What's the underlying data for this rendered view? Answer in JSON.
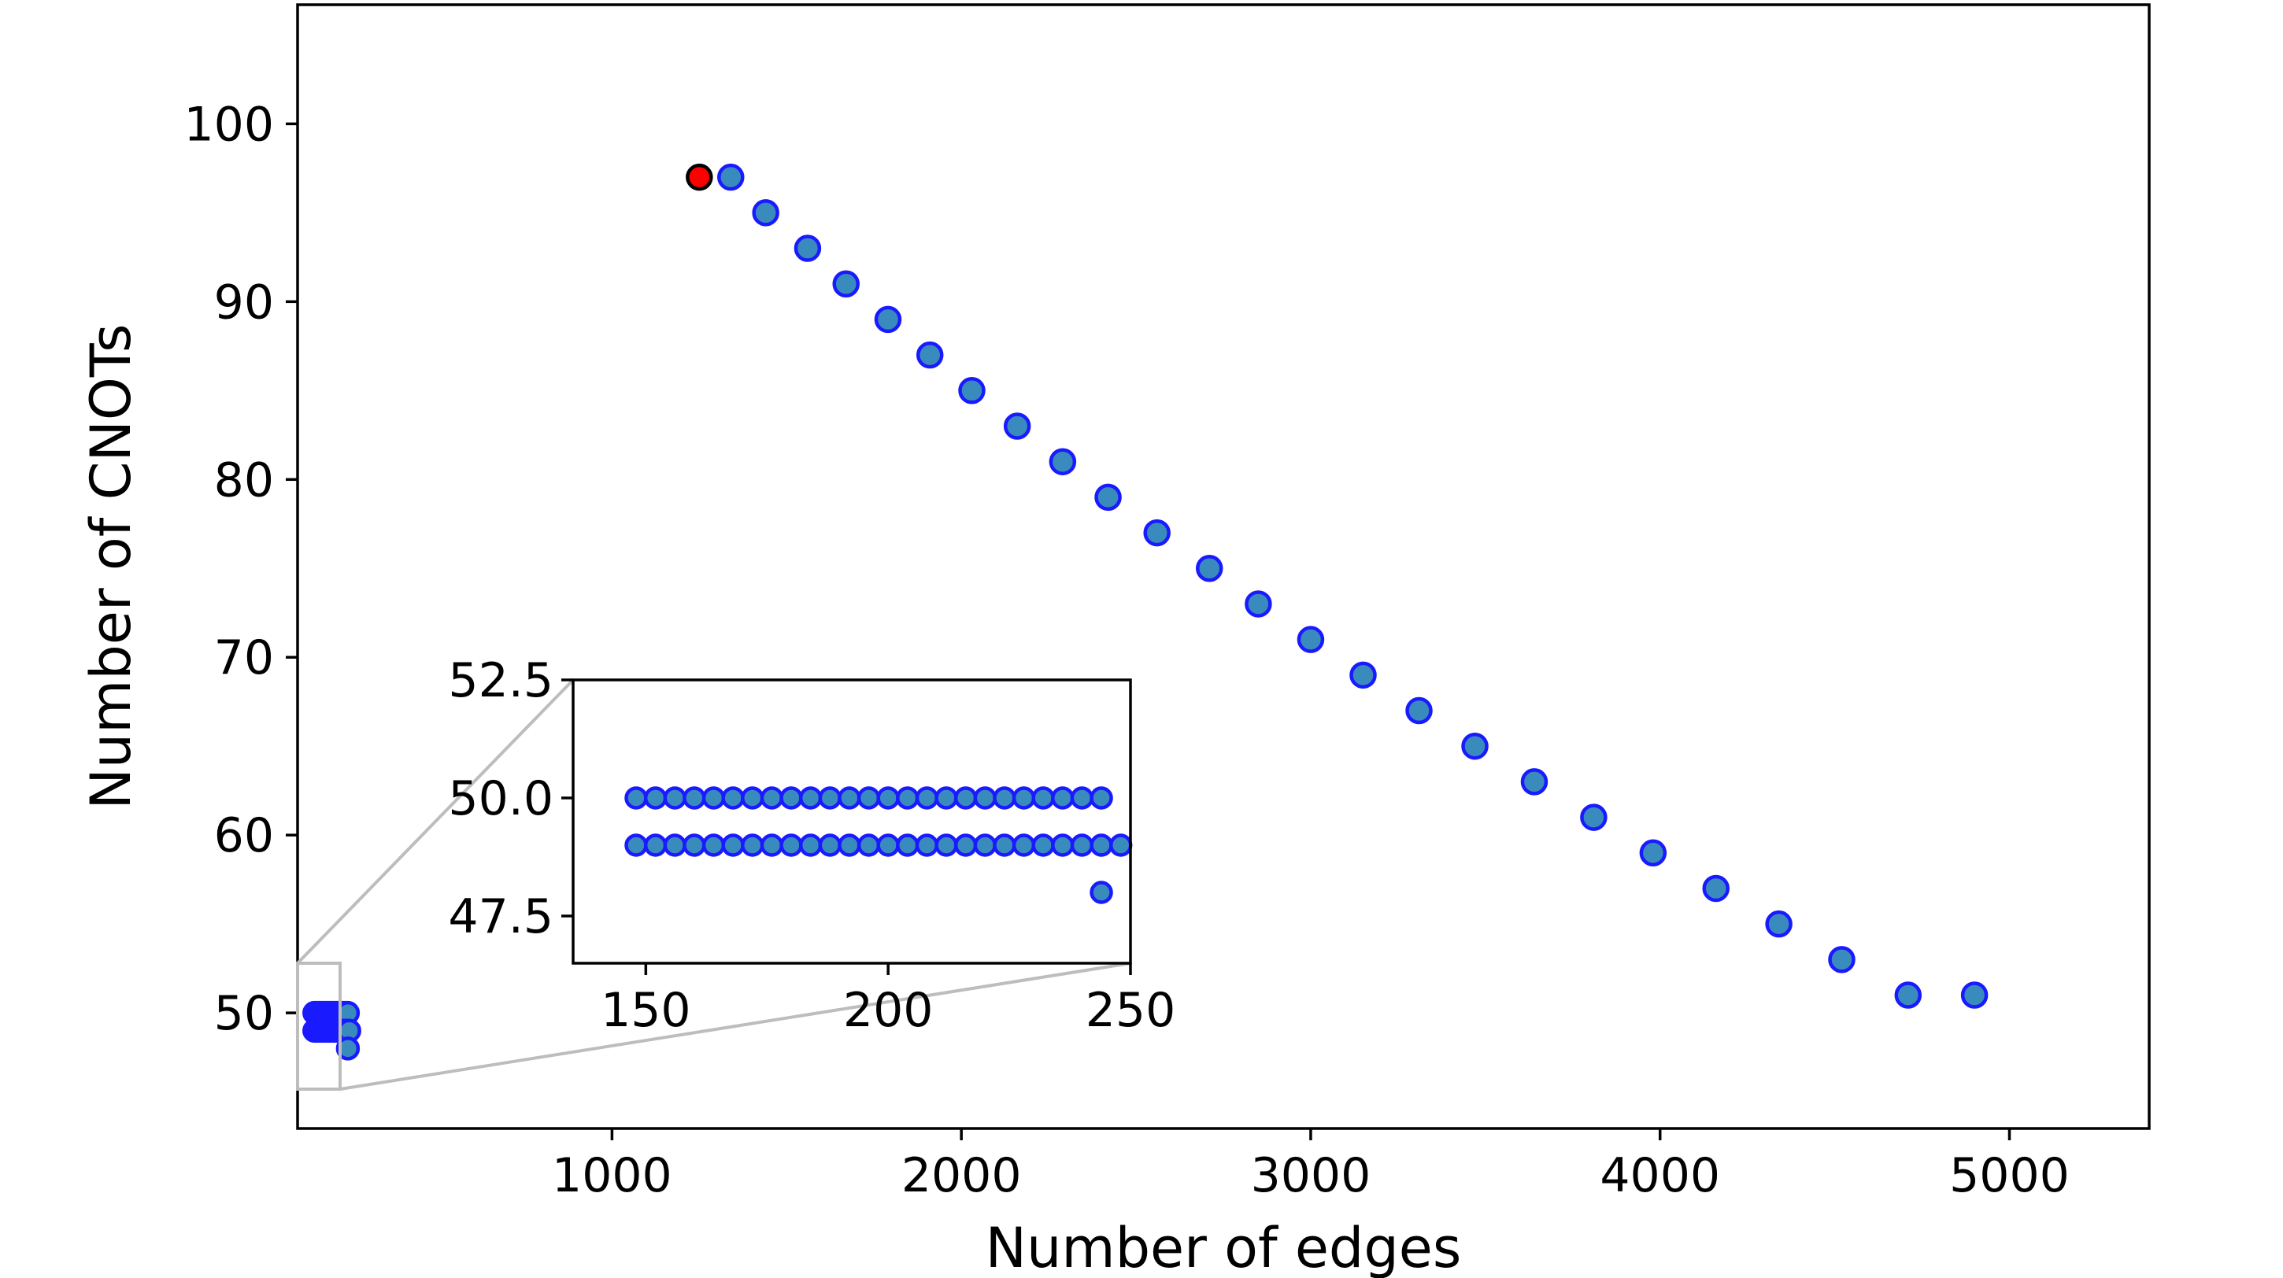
{
  "chart_data": [
    {
      "type": "scatter",
      "xlabel": "Number of edges",
      "ylabel": "Number of CNOTs",
      "xlim": [
        100,
        5400
      ],
      "ylim": [
        43.5,
        106.7
      ],
      "xticks": [
        1000,
        2000,
        3000,
        4000,
        5000
      ],
      "yticks": [
        50,
        60,
        70,
        80,
        90,
        100
      ],
      "grid": false,
      "series": [
        {
          "marker_color": "#3a8bbd",
          "edge_color": "#1a1aff",
          "x": [
            1340,
            1440,
            1560,
            1670,
            1790,
            1910,
            2030,
            2160,
            2290,
            2420,
            2560,
            2710,
            2850,
            3000,
            3150,
            3310,
            3470,
            3640,
            3810,
            3980,
            4160,
            4340,
            4520,
            4710,
            4900
          ],
          "y": [
            97,
            95,
            93,
            91,
            89,
            87,
            85,
            83,
            81,
            79,
            77,
            75,
            73,
            71,
            69,
            67,
            65,
            63,
            61,
            59,
            57,
            55,
            53,
            51,
            51
          ]
        },
        {
          "marker_color": "#ff0000",
          "edge_color": "#000000",
          "x": [
            1250
          ],
          "y": [
            97
          ]
        }
      ]
    },
    {
      "type": "scatter",
      "role": "inset zoom of the lower-left region",
      "xlim": [
        135,
        250
      ],
      "ylim": [
        46.5,
        52.5
      ],
      "xticks": [
        150,
        200,
        250
      ],
      "yticks": [
        47.5,
        50.0,
        52.5
      ],
      "ytick_labels": [
        "47.5",
        "50.0",
        "52.5"
      ],
      "series": [
        {
          "marker_color": "#3a8bbd",
          "edge_color": "#1a1aff",
          "x": [
            148,
            152,
            156,
            160,
            164,
            168,
            172,
            176,
            180,
            184,
            188,
            192,
            196,
            200,
            204,
            208,
            212,
            216,
            220,
            224,
            228,
            232,
            236,
            240,
            244
          ],
          "y": [
            50,
            50,
            50,
            50,
            50,
            50,
            50,
            50,
            50,
            50,
            50,
            50,
            50,
            50,
            50,
            50,
            50,
            50,
            50,
            50,
            50,
            50,
            50,
            50,
            50
          ]
        },
        {
          "marker_color": "#3a8bbd",
          "edge_color": "#1a1aff",
          "x": [
            148,
            152,
            156,
            160,
            164,
            168,
            172,
            176,
            180,
            184,
            188,
            192,
            196,
            200,
            204,
            208,
            212,
            216,
            220,
            224,
            228,
            232,
            236,
            240,
            244,
            248
          ],
          "y": [
            49,
            49,
            49,
            49,
            49,
            49,
            49,
            49,
            49,
            49,
            49,
            49,
            49,
            49,
            49,
            49,
            49,
            49,
            49,
            49,
            49,
            49,
            49,
            49,
            49,
            49
          ]
        },
        {
          "marker_color": "#3a8bbd",
          "edge_color": "#1a1aff",
          "x": [
            244
          ],
          "y": [
            48
          ]
        }
      ]
    }
  ]
}
